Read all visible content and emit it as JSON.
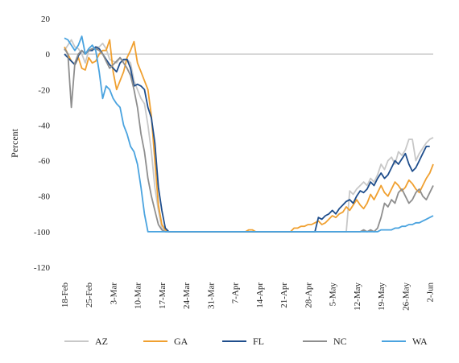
{
  "chart_data": {
    "type": "line",
    "title": "",
    "xlabel": "",
    "ylabel": "Percent",
    "ylim": [
      -120,
      20
    ],
    "yticks": [
      20,
      0,
      -20,
      -40,
      -60,
      -80,
      -100,
      -120
    ],
    "grid": false,
    "legend_position": "bottom",
    "x_start": "18-Feb",
    "x_ticks": [
      "18-Feb",
      "25-Feb",
      "3-Mar",
      "10-Mar",
      "17-Mar",
      "24-Mar",
      "31-Mar",
      "7-Apr",
      "14-Apr",
      "21-Apr",
      "28-Apr",
      "5-May",
      "12-May",
      "19-May",
      "26-May",
      "2-Jun"
    ],
    "series": [
      {
        "name": "AZ",
        "color": "#c8c8c8",
        "values": [
          2,
          5,
          8,
          4,
          3,
          0,
          -5,
          2,
          3,
          4,
          4,
          6,
          3,
          -3,
          -4,
          -5,
          -2,
          -4,
          -3,
          -5,
          -15,
          -20,
          -25,
          -28,
          -40,
          -55,
          -75,
          -88,
          -98,
          -99,
          -100,
          -100,
          -100,
          -100,
          -100,
          -100,
          -100,
          -100,
          -100,
          -100,
          -100,
          -100,
          -100,
          -100,
          -100,
          -100,
          -100,
          -100,
          -100,
          -100,
          -100,
          -100,
          -100,
          -100,
          -100,
          -100,
          -100,
          -100,
          -100,
          -100,
          -100,
          -100,
          -100,
          -100,
          -100,
          -100,
          -100,
          -100,
          -100,
          -100,
          -100,
          -100,
          -100,
          -100,
          -100,
          -100,
          -100,
          -100,
          -100,
          -100,
          -100,
          -100,
          -77,
          -79,
          -76,
          -74,
          -72,
          -74,
          -70,
          -72,
          -68,
          -62,
          -65,
          -60,
          -58,
          -62,
          -55,
          -57,
          -54,
          -48,
          -48,
          -60,
          -56,
          -53,
          -50,
          -48,
          -47
        ]
      },
      {
        "name": "GA",
        "color": "#f0a030",
        "values": [
          4,
          0,
          -4,
          -6,
          -2,
          -8,
          -9,
          -2,
          -5,
          -4,
          0,
          2,
          2,
          8,
          -10,
          -20,
          -15,
          -10,
          -2,
          2,
          7,
          -5,
          -10,
          -15,
          -20,
          -35,
          -60,
          -85,
          -96,
          -99,
          -100,
          -100,
          -100,
          -100,
          -100,
          -100,
          -100,
          -100,
          -100,
          -100,
          -100,
          -100,
          -100,
          -100,
          -100,
          -100,
          -100,
          -100,
          -100,
          -100,
          -100,
          -100,
          -100,
          -99,
          -99,
          -100,
          -100,
          -100,
          -100,
          -100,
          -100,
          -100,
          -100,
          -100,
          -100,
          -100,
          -98,
          -98,
          -97,
          -97,
          -96,
          -96,
          -95,
          -94,
          -96,
          -95,
          -93,
          -91,
          -92,
          -90,
          -89,
          -86,
          -88,
          -85,
          -82,
          -85,
          -87,
          -84,
          -79,
          -82,
          -78,
          -74,
          -78,
          -80,
          -76,
          -72,
          -74,
          -77,
          -75,
          -71,
          -73,
          -76,
          -78,
          -74,
          -70,
          -67,
          -62
        ]
      },
      {
        "name": "FL",
        "color": "#1f4e8c",
        "values": [
          0,
          -2,
          -4,
          -6,
          -1,
          2,
          0,
          2,
          2,
          4,
          3,
          0,
          -3,
          -6,
          -8,
          -10,
          -5,
          -3,
          -3,
          -8,
          -18,
          -17,
          -18,
          -20,
          -30,
          -36,
          -50,
          -75,
          -88,
          -98,
          -100,
          -100,
          -100,
          -100,
          -100,
          -100,
          -100,
          -100,
          -100,
          -100,
          -100,
          -100,
          -100,
          -100,
          -100,
          -100,
          -100,
          -100,
          -100,
          -100,
          -100,
          -100,
          -100,
          -100,
          -100,
          -100,
          -100,
          -100,
          -100,
          -100,
          -100,
          -100,
          -100,
          -100,
          -100,
          -100,
          -100,
          -100,
          -100,
          -100,
          -100,
          -100,
          -100,
          -92,
          -93,
          -91,
          -90,
          -88,
          -90,
          -87,
          -85,
          -83,
          -82,
          -84,
          -80,
          -77,
          -78,
          -76,
          -72,
          -74,
          -70,
          -67,
          -70,
          -68,
          -64,
          -60,
          -62,
          -59,
          -56,
          -62,
          -66,
          -64,
          -60,
          -56,
          -52,
          -52
        ]
      },
      {
        "name": "NC",
        "color": "#8e8e8e",
        "values": [
          3,
          0,
          -30,
          -5,
          0,
          2,
          0,
          2,
          3,
          3,
          2,
          0,
          -4,
          -8,
          -6,
          -4,
          -2,
          -5,
          -8,
          -12,
          -20,
          -30,
          -45,
          -55,
          -70,
          -80,
          -88,
          -96,
          -99,
          -100,
          -100,
          -100,
          -100,
          -100,
          -100,
          -100,
          -100,
          -100,
          -100,
          -100,
          -100,
          -100,
          -100,
          -100,
          -100,
          -100,
          -100,
          -100,
          -100,
          -100,
          -100,
          -100,
          -100,
          -100,
          -100,
          -100,
          -100,
          -100,
          -100,
          -100,
          -100,
          -100,
          -100,
          -100,
          -100,
          -100,
          -100,
          -100,
          -100,
          -100,
          -100,
          -100,
          -100,
          -100,
          -100,
          -100,
          -100,
          -100,
          -100,
          -100,
          -100,
          -100,
          -100,
          -100,
          -100,
          -100,
          -99,
          -100,
          -99,
          -100,
          -98,
          -92,
          -84,
          -86,
          -82,
          -84,
          -78,
          -76,
          -80,
          -84,
          -82,
          -78,
          -76,
          -80,
          -82,
          -78,
          -74
        ]
      },
      {
        "name": "WA",
        "color": "#4aa3df",
        "values": [
          9,
          8,
          5,
          2,
          5,
          10,
          0,
          3,
          5,
          2,
          -10,
          -25,
          -18,
          -20,
          -25,
          -28,
          -30,
          -40,
          -45,
          -52,
          -55,
          -62,
          -75,
          -90,
          -100,
          -100,
          -100,
          -100,
          -100,
          -100,
          -100,
          -100,
          -100,
          -100,
          -100,
          -100,
          -100,
          -100,
          -100,
          -100,
          -100,
          -100,
          -100,
          -100,
          -100,
          -100,
          -100,
          -100,
          -100,
          -100,
          -100,
          -100,
          -100,
          -100,
          -100,
          -100,
          -100,
          -100,
          -100,
          -100,
          -100,
          -100,
          -100,
          -100,
          -100,
          -100,
          -100,
          -100,
          -100,
          -100,
          -100,
          -100,
          -100,
          -100,
          -100,
          -100,
          -100,
          -100,
          -100,
          -100,
          -100,
          -100,
          -100,
          -100,
          -100,
          -100,
          -100,
          -100,
          -100,
          -100,
          -100,
          -99,
          -99,
          -99,
          -99,
          -98,
          -98,
          -97,
          -97,
          -96,
          -96,
          -95,
          -95,
          -94,
          -93,
          -92,
          -91
        ]
      }
    ]
  }
}
